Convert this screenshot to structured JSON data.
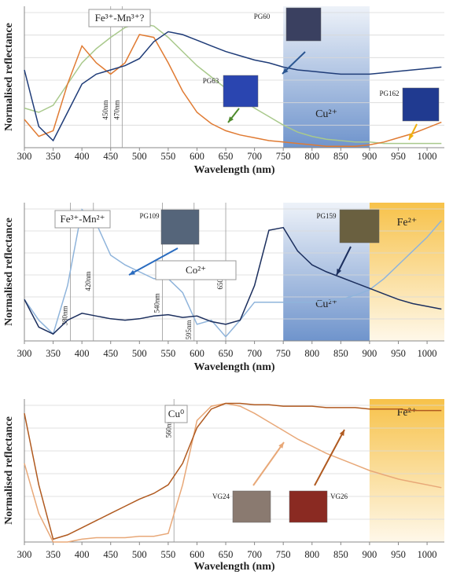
{
  "chart_data": [
    {
      "type": "line",
      "xlabel": "Wavelength (nm)",
      "ylabel": "Normalised reflectance",
      "xlim": [
        300,
        1030
      ],
      "ylim": [
        0,
        1
      ],
      "xticks": [
        300,
        350,
        400,
        450,
        500,
        550,
        600,
        650,
        700,
        750,
        800,
        850,
        900,
        950,
        1000
      ],
      "grid": true,
      "x": [
        300,
        325,
        350,
        375,
        400,
        425,
        450,
        475,
        500,
        525,
        550,
        575,
        600,
        625,
        650,
        675,
        700,
        725,
        750,
        775,
        800,
        825,
        850,
        875,
        900,
        925,
        950,
        975,
        1000,
        1025
      ],
      "series": [
        {
          "name": "PG60",
          "color": "#a9c98c",
          "values": [
            0.28,
            0.25,
            0.3,
            0.45,
            0.6,
            0.7,
            0.78,
            0.85,
            0.88,
            0.86,
            0.78,
            0.68,
            0.58,
            0.5,
            0.42,
            0.35,
            0.28,
            0.22,
            0.16,
            0.11,
            0.08,
            0.06,
            0.05,
            0.04,
            0.04,
            0.03,
            0.03,
            0.03,
            0.03,
            0.03
          ]
        },
        {
          "name": "PG63",
          "color": "#e07b33",
          "values": [
            0.2,
            0.08,
            0.12,
            0.45,
            0.72,
            0.6,
            0.52,
            0.6,
            0.8,
            0.78,
            0.6,
            0.4,
            0.25,
            0.17,
            0.12,
            0.09,
            0.07,
            0.05,
            0.04,
            0.03,
            0.02,
            0.01,
            0.01,
            0.01,
            0.02,
            0.04,
            0.07,
            0.1,
            0.14,
            0.18
          ]
        },
        {
          "name": "PG162",
          "color": "#1f3c78",
          "values": [
            0.55,
            0.15,
            0.05,
            0.25,
            0.45,
            0.52,
            0.55,
            0.58,
            0.63,
            0.75,
            0.82,
            0.8,
            0.76,
            0.72,
            0.68,
            0.65,
            0.62,
            0.6,
            0.57,
            0.55,
            0.54,
            0.53,
            0.52,
            0.52,
            0.52,
            0.53,
            0.54,
            0.55,
            0.56,
            0.57
          ]
        }
      ],
      "vlines": [
        {
          "x": 450,
          "label": "450nm"
        },
        {
          "x": 470,
          "label": "470nm"
        }
      ],
      "regions": [
        {
          "from": 750,
          "to": 900,
          "label": "Cu²⁺",
          "color": "#6f94cc"
        }
      ],
      "box_labels": [
        "Fe³⁺-Mn³⁺?"
      ]
    },
    {
      "type": "line",
      "xlabel": "Wavelength (nm)",
      "ylabel": "Normalised reflectance",
      "xlim": [
        300,
        1030
      ],
      "ylim": [
        0,
        1
      ],
      "xticks": [
        300,
        350,
        400,
        450,
        500,
        550,
        600,
        650,
        700,
        750,
        800,
        850,
        900,
        950,
        1000
      ],
      "grid": true,
      "x": [
        300,
        325,
        350,
        375,
        400,
        425,
        450,
        475,
        500,
        525,
        550,
        575,
        600,
        625,
        650,
        675,
        700,
        725,
        750,
        775,
        800,
        825,
        850,
        875,
        900,
        925,
        950,
        975,
        1000,
        1025
      ],
      "series": [
        {
          "name": "PG109",
          "color": "#8fb4db",
          "values": [
            0.3,
            0.15,
            0.05,
            0.4,
            0.95,
            0.85,
            0.62,
            0.55,
            0.5,
            0.45,
            0.45,
            0.35,
            0.12,
            0.15,
            0.03,
            0.15,
            0.28,
            0.28,
            0.28,
            0.28,
            0.28,
            0.29,
            0.3,
            0.33,
            0.37,
            0.45,
            0.55,
            0.65,
            0.75,
            0.87
          ]
        },
        {
          "name": "PG159",
          "color": "#1c2f5e",
          "values": [
            0.3,
            0.1,
            0.05,
            0.15,
            0.2,
            0.18,
            0.16,
            0.15,
            0.16,
            0.18,
            0.19,
            0.17,
            0.18,
            0.14,
            0.12,
            0.15,
            0.4,
            0.8,
            0.82,
            0.65,
            0.55,
            0.5,
            0.46,
            0.42,
            0.38,
            0.34,
            0.3,
            0.27,
            0.25,
            0.23
          ]
        }
      ],
      "vlines": [
        {
          "x": 380,
          "label": "380nm"
        },
        {
          "x": 420,
          "label": "420nm"
        },
        {
          "x": 540,
          "label": "540nm"
        },
        {
          "x": 595,
          "label": "595nm"
        },
        {
          "x": 650,
          "label": "650nm"
        }
      ],
      "regions": [
        {
          "from": 750,
          "to": 900,
          "label": "Cu²⁺",
          "color": "#6f94cc"
        },
        {
          "from": 900,
          "to": 1030,
          "label": "Fe²⁺",
          "color": "#f7c24a"
        }
      ],
      "box_labels": [
        "Fe³⁺-Mn²⁺",
        "Co²⁺"
      ]
    },
    {
      "type": "line",
      "xlabel": "Wavelength (nm)",
      "ylabel": "Normalised reflectance",
      "xlim": [
        300,
        1030
      ],
      "ylim": [
        0,
        1
      ],
      "xticks": [
        300,
        350,
        400,
        450,
        500,
        550,
        600,
        650,
        700,
        750,
        800,
        850,
        900,
        950,
        1000
      ],
      "grid": true,
      "x": [
        300,
        325,
        350,
        375,
        400,
        425,
        450,
        475,
        500,
        525,
        550,
        575,
        600,
        625,
        650,
        675,
        700,
        725,
        750,
        775,
        800,
        825,
        850,
        875,
        900,
        925,
        950,
        975,
        1000,
        1025
      ],
      "series": [
        {
          "name": "VG24",
          "color": "#e8a878",
          "values": [
            0.55,
            0.2,
            0.0,
            0.0,
            0.02,
            0.03,
            0.03,
            0.03,
            0.04,
            0.04,
            0.06,
            0.4,
            0.85,
            0.95,
            0.97,
            0.95,
            0.9,
            0.84,
            0.78,
            0.72,
            0.67,
            0.62,
            0.58,
            0.54,
            0.5,
            0.47,
            0.44,
            0.42,
            0.4,
            0.38
          ]
        },
        {
          "name": "VG26",
          "color": "#b05a20",
          "values": [
            0.9,
            0.4,
            0.02,
            0.05,
            0.1,
            0.15,
            0.2,
            0.25,
            0.3,
            0.34,
            0.4,
            0.55,
            0.8,
            0.93,
            0.97,
            0.97,
            0.96,
            0.96,
            0.95,
            0.95,
            0.95,
            0.94,
            0.94,
            0.94,
            0.93,
            0.93,
            0.93,
            0.92,
            0.92,
            0.92
          ]
        }
      ],
      "vlines": [
        {
          "x": 560,
          "label": "560nm"
        }
      ],
      "regions": [
        {
          "from": 900,
          "to": 1030,
          "label": "Fe²⁺",
          "color": "#f7c24a"
        }
      ],
      "box_labels": [
        "Cu⁰"
      ]
    }
  ]
}
